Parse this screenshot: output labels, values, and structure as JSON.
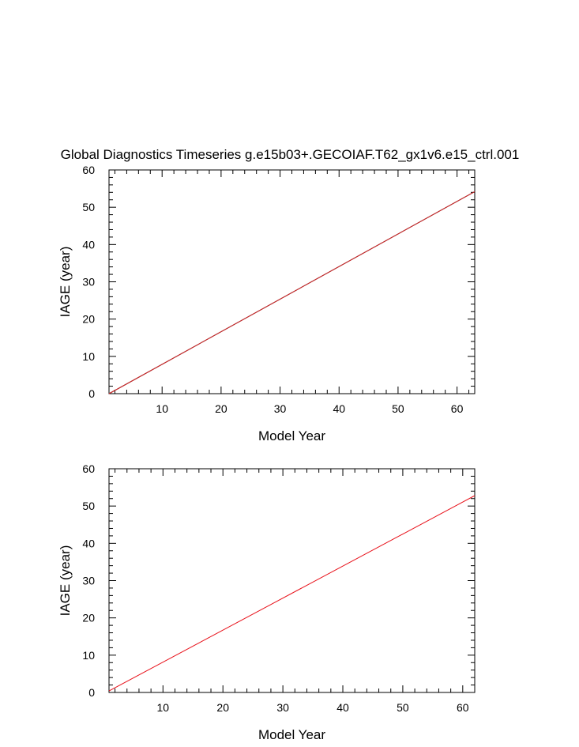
{
  "title": "Global Diagnostics Timeseries g.e15b03+.GECOIAF.T62_gx1v6.e15_ctrl.001",
  "chart_data": [
    {
      "type": "line",
      "xlabel": "Model Year",
      "ylabel": "IAGE (year)",
      "xlim": [
        1,
        63
      ],
      "ylim": [
        0,
        60
      ],
      "x_ticks": [
        10,
        20,
        30,
        40,
        50,
        60
      ],
      "y_ticks": [
        0,
        10,
        20,
        30,
        40,
        50,
        60
      ],
      "x_minor_step": 2,
      "y_minor_step": 2,
      "grid": false,
      "series": [
        {
          "color": "#000000",
          "x": [
            1,
            63
          ],
          "y": [
            0.0,
            54.2
          ]
        },
        {
          "color": "#d62728",
          "x": [
            1,
            63
          ],
          "y": [
            0.0,
            54.2
          ]
        }
      ]
    },
    {
      "type": "line",
      "xlabel": "Model Year",
      "ylabel": "IAGE (year)",
      "xlim": [
        1,
        62
      ],
      "ylim": [
        0,
        60
      ],
      "x_ticks": [
        10,
        20,
        30,
        40,
        50,
        60
      ],
      "y_ticks": [
        0,
        10,
        20,
        30,
        40,
        50,
        60
      ],
      "x_minor_step": 2,
      "y_minor_step": 2,
      "grid": false,
      "series": [
        {
          "color": "#e8111a",
          "x": [
            1,
            62
          ],
          "y": [
            0.4,
            52.8
          ]
        }
      ]
    }
  ]
}
